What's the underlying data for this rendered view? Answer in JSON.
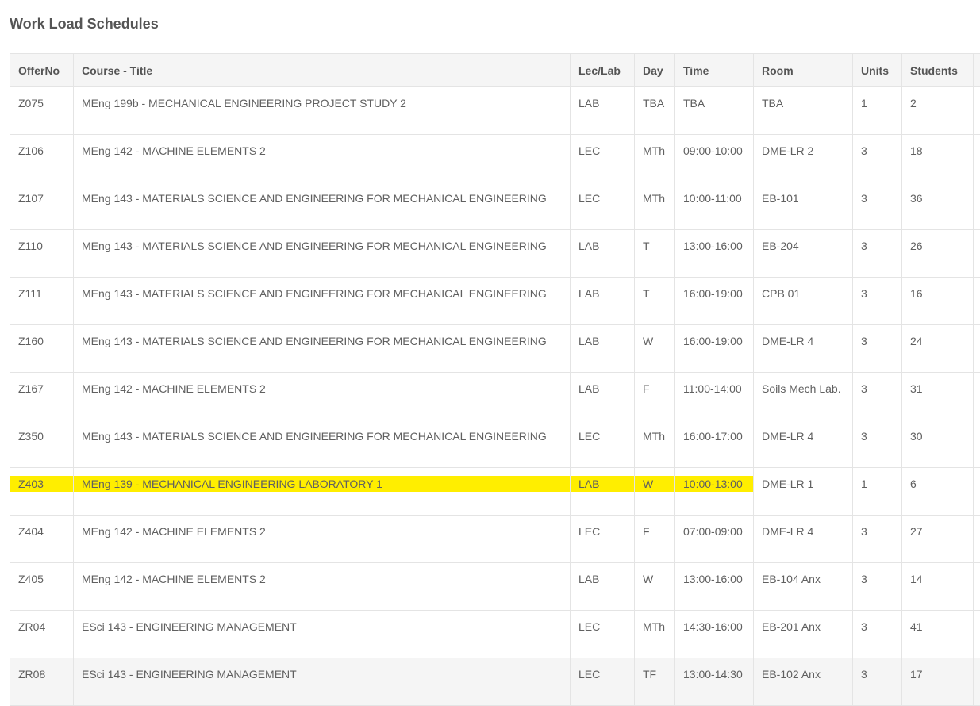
{
  "page": {
    "title": "Work Load Schedules"
  },
  "table": {
    "headers": {
      "offer_no": "OfferNo",
      "course_title": "Course - Title",
      "lec_lab": "Lec/Lab",
      "day": "Day",
      "time": "Time",
      "room": "Room",
      "units": "Units",
      "students": "Students"
    },
    "rows": [
      {
        "offer_no": "Z075",
        "course_title": "MEng 199b - MECHANICAL ENGINEERING PROJECT STUDY 2",
        "lec_lab": "LAB",
        "day": "TBA",
        "time": "TBA",
        "room": "TBA",
        "units": "1",
        "students": "2"
      },
      {
        "offer_no": "Z106",
        "course_title": "MEng 142 - MACHINE ELEMENTS 2",
        "lec_lab": "LEC",
        "day": "MTh",
        "time": "09:00-10:00",
        "room": "DME-LR 2",
        "units": "3",
        "students": "18"
      },
      {
        "offer_no": "Z107",
        "course_title": "MEng 143 - MATERIALS SCIENCE AND ENGINEERING FOR MECHANICAL ENGINEERING",
        "lec_lab": "LEC",
        "day": "MTh",
        "time": "10:00-11:00",
        "room": "EB-101",
        "units": "3",
        "students": "36"
      },
      {
        "offer_no": "Z110",
        "course_title": "MEng 143 - MATERIALS SCIENCE AND ENGINEERING FOR MECHANICAL ENGINEERING",
        "lec_lab": "LAB",
        "day": "T",
        "time": "13:00-16:00",
        "room": "EB-204",
        "units": "3",
        "students": "26"
      },
      {
        "offer_no": "Z111",
        "course_title": "MEng 143 - MATERIALS SCIENCE AND ENGINEERING FOR MECHANICAL ENGINEERING",
        "lec_lab": "LAB",
        "day": "T",
        "time": "16:00-19:00",
        "room": "CPB 01",
        "units": "3",
        "students": "16"
      },
      {
        "offer_no": "Z160",
        "course_title": "MEng 143 - MATERIALS SCIENCE AND ENGINEERING FOR MECHANICAL ENGINEERING",
        "lec_lab": "LAB",
        "day": "W",
        "time": "16:00-19:00",
        "room": "DME-LR 4",
        "units": "3",
        "students": "24"
      },
      {
        "offer_no": "Z167",
        "course_title": "MEng 142 - MACHINE ELEMENTS 2",
        "lec_lab": "LAB",
        "day": "F",
        "time": "11:00-14:00",
        "room": "Soils Mech Lab.",
        "units": "3",
        "students": "31"
      },
      {
        "offer_no": "Z350",
        "course_title": "MEng 143 - MATERIALS SCIENCE AND ENGINEERING FOR MECHANICAL ENGINEERING",
        "lec_lab": "LEC",
        "day": "MTh",
        "time": "16:00-17:00",
        "room": "DME-LR 4",
        "units": "3",
        "students": "30"
      },
      {
        "offer_no": "Z403",
        "course_title": "MEng 139 - MECHANICAL ENGINEERING LABORATORY 1",
        "lec_lab": "LAB",
        "day": "W",
        "time": "10:00-13:00",
        "room": "DME-LR 1",
        "units": "1",
        "students": "6"
      },
      {
        "offer_no": "Z404",
        "course_title": "MEng 142 - MACHINE ELEMENTS 2",
        "lec_lab": "LEC",
        "day": "F",
        "time": "07:00-09:00",
        "room": "DME-LR 4",
        "units": "3",
        "students": "27"
      },
      {
        "offer_no": "Z405",
        "course_title": "MEng 142 - MACHINE ELEMENTS 2",
        "lec_lab": "LAB",
        "day": "W",
        "time": "13:00-16:00",
        "room": "EB-104 Anx",
        "units": "3",
        "students": "14"
      },
      {
        "offer_no": "ZR04",
        "course_title": "ESci 143 - ENGINEERING MANAGEMENT",
        "lec_lab": "LEC",
        "day": "MTh",
        "time": "14:30-16:00",
        "room": "EB-201 Anx",
        "units": "3",
        "students": "41"
      },
      {
        "offer_no": "ZR08",
        "course_title": "ESci 143 - ENGINEERING MANAGEMENT",
        "lec_lab": "LEC",
        "day": "TF",
        "time": "13:00-14:30",
        "room": "EB-102 Anx",
        "units": "3",
        "students": "17"
      }
    ]
  },
  "colors": {
    "highlight": "#ffee00",
    "header_bg": "#f5f5f5",
    "border": "#e4e4e4",
    "text": "#555555"
  }
}
